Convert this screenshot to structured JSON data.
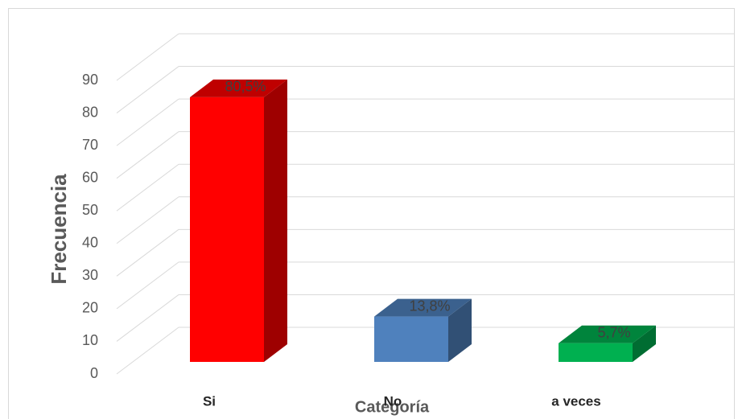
{
  "chart_data": {
    "type": "bar3d",
    "x_label": "Categoría",
    "y_label": "Frecuencia",
    "categories": [
      "Si",
      "No",
      "a veces"
    ],
    "values": [
      80.5,
      13.8,
      5.7
    ],
    "value_labels": [
      "80,5%",
      "13,8%",
      "5,7%"
    ],
    "colors": [
      "#ff0000",
      "#4f81bd",
      "#00b050"
    ],
    "ylim": [
      0,
      90
    ],
    "yticks": [
      0,
      10,
      20,
      30,
      40,
      50,
      60,
      70,
      80,
      90
    ],
    "grid": true
  }
}
